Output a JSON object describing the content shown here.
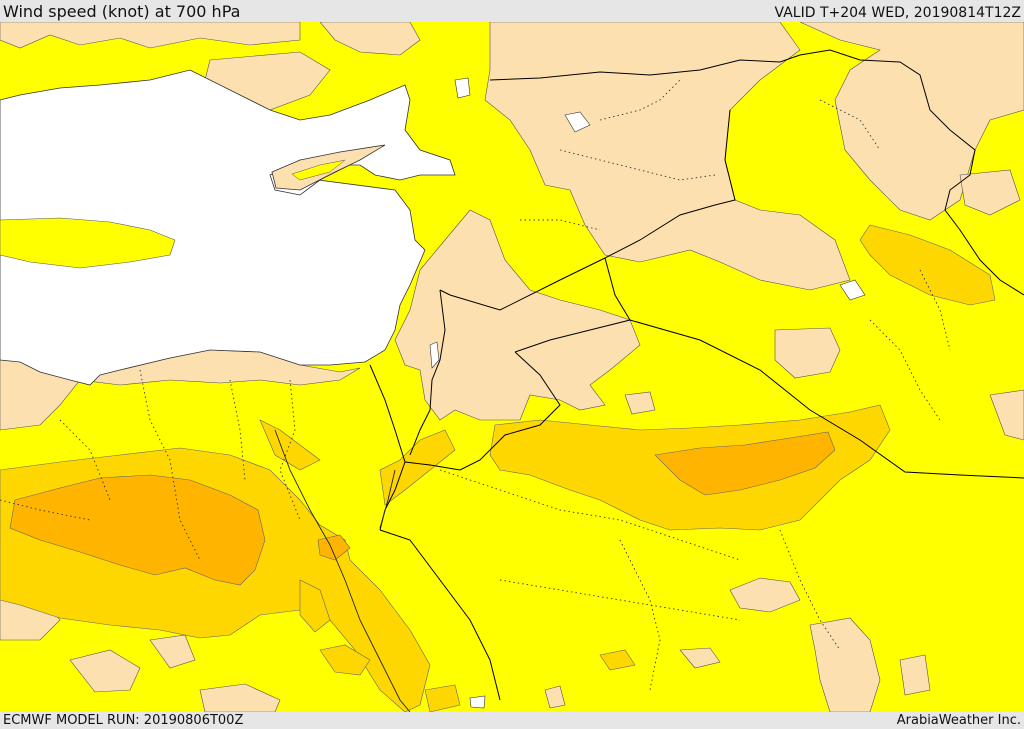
{
  "header": {
    "title": "Wind speed (knot) at 700 hPa",
    "valid": "VALID T+204 WED, 20190814T12Z"
  },
  "footer": {
    "model_run": "ECMWF MODEL RUN: 20190806T00Z",
    "provider": "ArabiaWeather Inc."
  },
  "map": {
    "field": "wind speed at 700 hPa",
    "colors": {
      "sea": "#ffffff",
      "calm": "#fde0b0",
      "moderate": "#ffff00",
      "strong": "#ffd700",
      "stronger": "#ffb400",
      "border": "#000000"
    }
  }
}
